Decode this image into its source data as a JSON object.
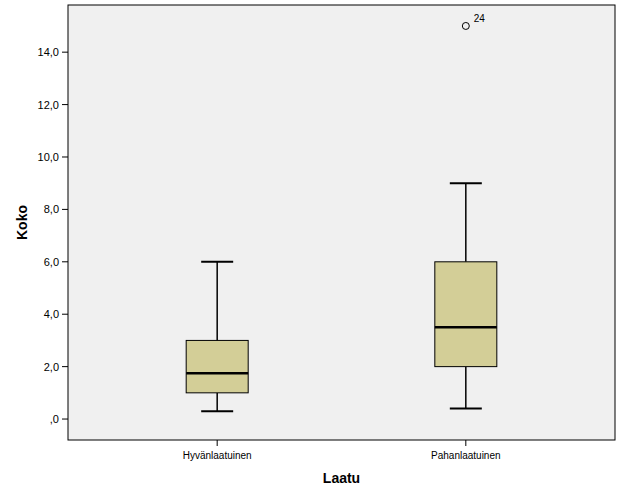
{
  "chart_data": {
    "type": "box",
    "x_label": "Laatu",
    "y_label": "Koko",
    "categories": [
      "Hyvänlaatuinen",
      "Pahanlaatuinen"
    ],
    "min": [
      0.3,
      0.4
    ],
    "q1": [
      1.0,
      2.0
    ],
    "median": [
      1.75,
      3.5
    ],
    "q3": [
      3.0,
      6.0
    ],
    "max": [
      6.0,
      9.0
    ],
    "outliers": [
      [],
      [
        {
          "value": 15.0,
          "label": "24"
        }
      ]
    ],
    "color": "#d3ce97",
    "ylim": [
      -0.8,
      15.8
    ],
    "yticks": [
      {
        "value": 0,
        "label": ",0"
      },
      {
        "value": 2,
        "label": "2,0"
      },
      {
        "value": 4,
        "label": "4,0"
      },
      {
        "value": 6,
        "label": "6,0"
      },
      {
        "value": 8,
        "label": "8,0"
      },
      {
        "value": 10,
        "label": "10,0"
      },
      {
        "value": 12,
        "label": "12,0"
      },
      {
        "value": 14,
        "label": "14,0"
      }
    ],
    "grid": false
  }
}
